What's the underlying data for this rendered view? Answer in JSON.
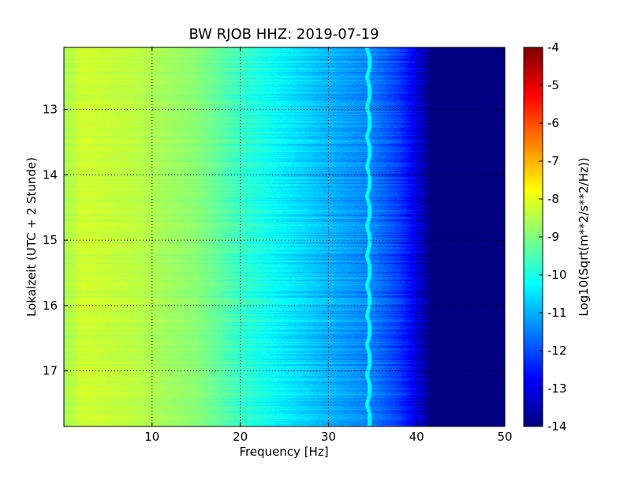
{
  "chart_data": {
    "type": "heatmap",
    "title": "BW RJOB HHZ: 2019-07-19",
    "xlabel": "Frequency [Hz]",
    "ylabel": "Lokalzeit (UTC + 2 Stunde)",
    "xlim": [
      0,
      50
    ],
    "ylim": [
      12.05,
      17.85
    ],
    "y_inverted": true,
    "x_ticks": [
      {
        "value": 10,
        "label": "10"
      },
      {
        "value": 20,
        "label": "20"
      },
      {
        "value": 30,
        "label": "30"
      },
      {
        "value": 40,
        "label": "40"
      },
      {
        "value": 50,
        "label": "50"
      }
    ],
    "y_ticks": [
      {
        "value": 13,
        "label": "13"
      },
      {
        "value": 14,
        "label": "14"
      },
      {
        "value": 15,
        "label": "15"
      },
      {
        "value": 16,
        "label": "16"
      },
      {
        "value": 17,
        "label": "17"
      }
    ],
    "grid": true,
    "colormap": "jet",
    "colorbar": {
      "label": "Log10(Sqrt(m**2/s**2/Hz))",
      "range": [
        -14,
        -4
      ],
      "ticks": [
        "-4",
        "-5",
        "-6",
        "-7",
        "-8",
        "-9",
        "-10",
        "-11",
        "-12",
        "-13",
        "-14"
      ]
    },
    "psd_profile": [
      {
        "freq": 0,
        "value": -8.6
      },
      {
        "freq": 2,
        "value": -8.2
      },
      {
        "freq": 8,
        "value": -8.4
      },
      {
        "freq": 15,
        "value": -8.9
      },
      {
        "freq": 20,
        "value": -9.7
      },
      {
        "freq": 25,
        "value": -10.4
      },
      {
        "freq": 30,
        "value": -11.0
      },
      {
        "freq": 35,
        "value": -11.5
      },
      {
        "freq": 38,
        "value": -12.2
      },
      {
        "freq": 40,
        "value": -13.0
      },
      {
        "freq": 41.5,
        "value": -14.0
      },
      {
        "freq": 50,
        "value": -14.0
      }
    ],
    "tonal_line": {
      "freq": 34.3,
      "value": -10.3
    }
  }
}
